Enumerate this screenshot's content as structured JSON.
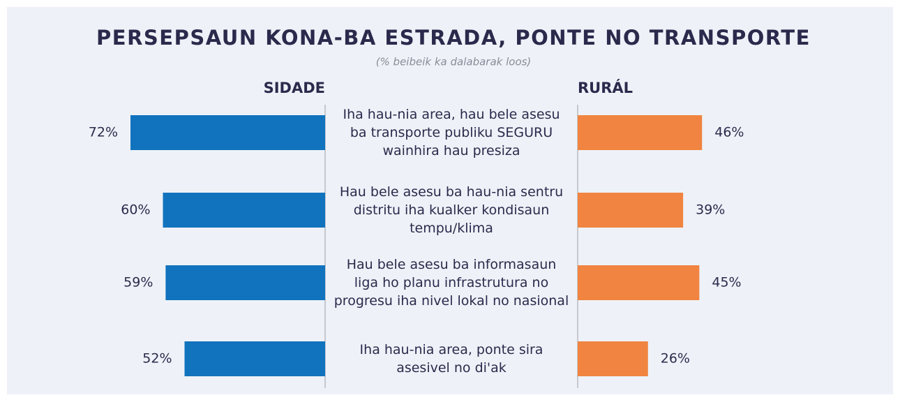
{
  "chart_data": {
    "type": "butterfly-bar",
    "title": "PERSEPSAUN KONA-BA ESTRADA, PONTE NO TRANSPORTE",
    "subtitle": "(% beibeik ka dalabarak loos)",
    "categories": [
      "Iha hau-nia area, hau bele asesu ba transporte publiku SEGURU wainhira hau presiza",
      "Hau bele asesu ba hau-nia sentru distritu iha kualker kondisaun tempu/klima",
      "Hau bele asesu ba informasaun liga ho planu infrastrutura no progresu iha nivel lokal no nasional",
      "Iha hau-nia area, ponte sira asesivel no di'ak"
    ],
    "series": [
      {
        "name": "SIDADE",
        "color": "#1173be",
        "values": [
          72,
          60,
          59,
          52
        ],
        "value_labels": [
          "72%",
          "60%",
          "59%",
          "52%"
        ]
      },
      {
        "name": "RURÁL",
        "color": "#f08440",
        "values": [
          46,
          39,
          45,
          26
        ],
        "value_labels": [
          "46%",
          "39%",
          "45%",
          "26%"
        ]
      }
    ]
  }
}
